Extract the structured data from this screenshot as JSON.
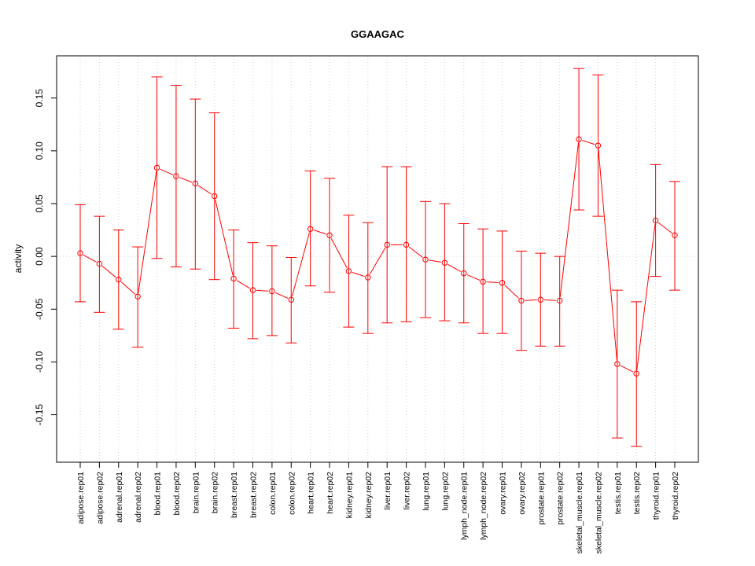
{
  "chart_data": {
    "type": "line",
    "title": "GGAAGAC",
    "xlabel": "",
    "ylabel": "activity",
    "ylim": [
      -0.195,
      0.19
    ],
    "yticks": [
      -0.15,
      -0.1,
      -0.05,
      0.0,
      0.05,
      0.1,
      0.15
    ],
    "ytick_labels": [
      "-0.15",
      "-0.10",
      "-0.05",
      "0.00",
      "0.05",
      "0.10",
      "0.15"
    ],
    "grid": true,
    "color": "#ff0000",
    "categories": [
      "adipose.rep01",
      "adipose.rep02",
      "adrenal.rep01",
      "adrenal.rep02",
      "blood.rep01",
      "blood.rep02",
      "brain.rep01",
      "brain.rep02",
      "breast.rep01",
      "breast.rep02",
      "colon.rep01",
      "colon.rep02",
      "heart.rep01",
      "heart.rep02",
      "kidney.rep01",
      "kidney.rep02",
      "liver.rep01",
      "liver.rep02",
      "lung.rep01",
      "lung.rep02",
      "lymph_node.rep01",
      "lymph_node.rep02",
      "ovary.rep01",
      "ovary.rep02",
      "prostate.rep01",
      "prostate.rep02",
      "skeletal_muscle.rep01",
      "skeletal_muscle.rep02",
      "testis.rep01",
      "testis.rep02",
      "thyroid.rep01",
      "thyroid.rep02"
    ],
    "values": [
      0.003,
      -0.007,
      -0.022,
      -0.038,
      0.084,
      0.076,
      0.069,
      0.057,
      -0.021,
      -0.032,
      -0.033,
      -0.041,
      0.026,
      0.02,
      -0.014,
      -0.02,
      0.011,
      0.011,
      -0.003,
      -0.006,
      -0.016,
      -0.024,
      -0.025,
      -0.042,
      -0.041,
      -0.042,
      0.111,
      0.105,
      -0.102,
      -0.111,
      0.034,
      0.02
    ],
    "upper": [
      0.049,
      0.038,
      0.025,
      0.009,
      0.17,
      0.162,
      0.149,
      0.136,
      0.025,
      0.013,
      0.01,
      -0.001,
      0.081,
      0.074,
      0.039,
      0.032,
      0.085,
      0.085,
      0.052,
      0.05,
      0.031,
      0.026,
      0.024,
      0.005,
      0.003,
      0.0,
      0.178,
      0.172,
      -0.032,
      -0.043,
      0.087,
      0.071
    ],
    "lower": [
      -0.043,
      -0.053,
      -0.069,
      -0.086,
      -0.002,
      -0.01,
      -0.012,
      -0.022,
      -0.068,
      -0.078,
      -0.075,
      -0.082,
      -0.028,
      -0.034,
      -0.067,
      -0.073,
      -0.063,
      -0.062,
      -0.058,
      -0.061,
      -0.063,
      -0.073,
      -0.073,
      -0.089,
      -0.085,
      -0.085,
      0.044,
      0.038,
      -0.172,
      -0.18,
      -0.019,
      -0.032
    ]
  }
}
